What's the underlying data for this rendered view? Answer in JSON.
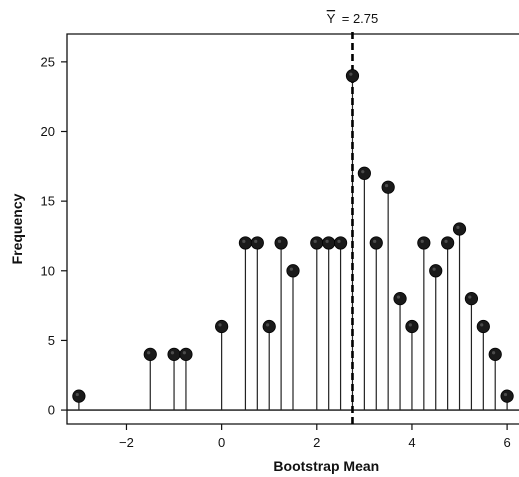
{
  "chart_data": {
    "type": "stem",
    "xlabel": "Bootstrap Mean",
    "ylabel": "Frequency",
    "xlim": [
      -3.25,
      6.25
    ],
    "ylim": [
      -1,
      27
    ],
    "x_ticks": [
      -2,
      0,
      2,
      4,
      6
    ],
    "x_tick_labels": [
      "−2",
      "0",
      "2",
      "4",
      "6"
    ],
    "y_ticks": [
      0,
      5,
      10,
      15,
      20,
      25
    ],
    "y_tick_labels": [
      "0",
      "5",
      "10",
      "15",
      "20",
      "25"
    ],
    "reference_line": {
      "x": 2.75,
      "label_prefix": "Y",
      "label_value": "= 2.75",
      "style": "dashed"
    },
    "points": [
      {
        "x": -3.0,
        "y": 1
      },
      {
        "x": -1.5,
        "y": 4
      },
      {
        "x": -1.0,
        "y": 4
      },
      {
        "x": -0.75,
        "y": 4
      },
      {
        "x": 0.0,
        "y": 6
      },
      {
        "x": 0.5,
        "y": 12
      },
      {
        "x": 0.75,
        "y": 12
      },
      {
        "x": 1.0,
        "y": 6
      },
      {
        "x": 1.25,
        "y": 12
      },
      {
        "x": 1.5,
        "y": 10
      },
      {
        "x": 2.0,
        "y": 12
      },
      {
        "x": 2.25,
        "y": 12
      },
      {
        "x": 2.5,
        "y": 12
      },
      {
        "x": 2.75,
        "y": 24
      },
      {
        "x": 3.0,
        "y": 17
      },
      {
        "x": 3.25,
        "y": 12
      },
      {
        "x": 3.5,
        "y": 16
      },
      {
        "x": 3.75,
        "y": 8
      },
      {
        "x": 4.0,
        "y": 6
      },
      {
        "x": 4.25,
        "y": 12
      },
      {
        "x": 4.5,
        "y": 10
      },
      {
        "x": 4.75,
        "y": 12
      },
      {
        "x": 5.0,
        "y": 13
      },
      {
        "x": 5.25,
        "y": 8
      },
      {
        "x": 5.5,
        "y": 6
      },
      {
        "x": 5.75,
        "y": 4
      },
      {
        "x": 6.0,
        "y": 1
      }
    ],
    "grid": false,
    "colors": {
      "marker": "#1a1a1a",
      "stem": "#222222",
      "axis": "#111111"
    }
  }
}
